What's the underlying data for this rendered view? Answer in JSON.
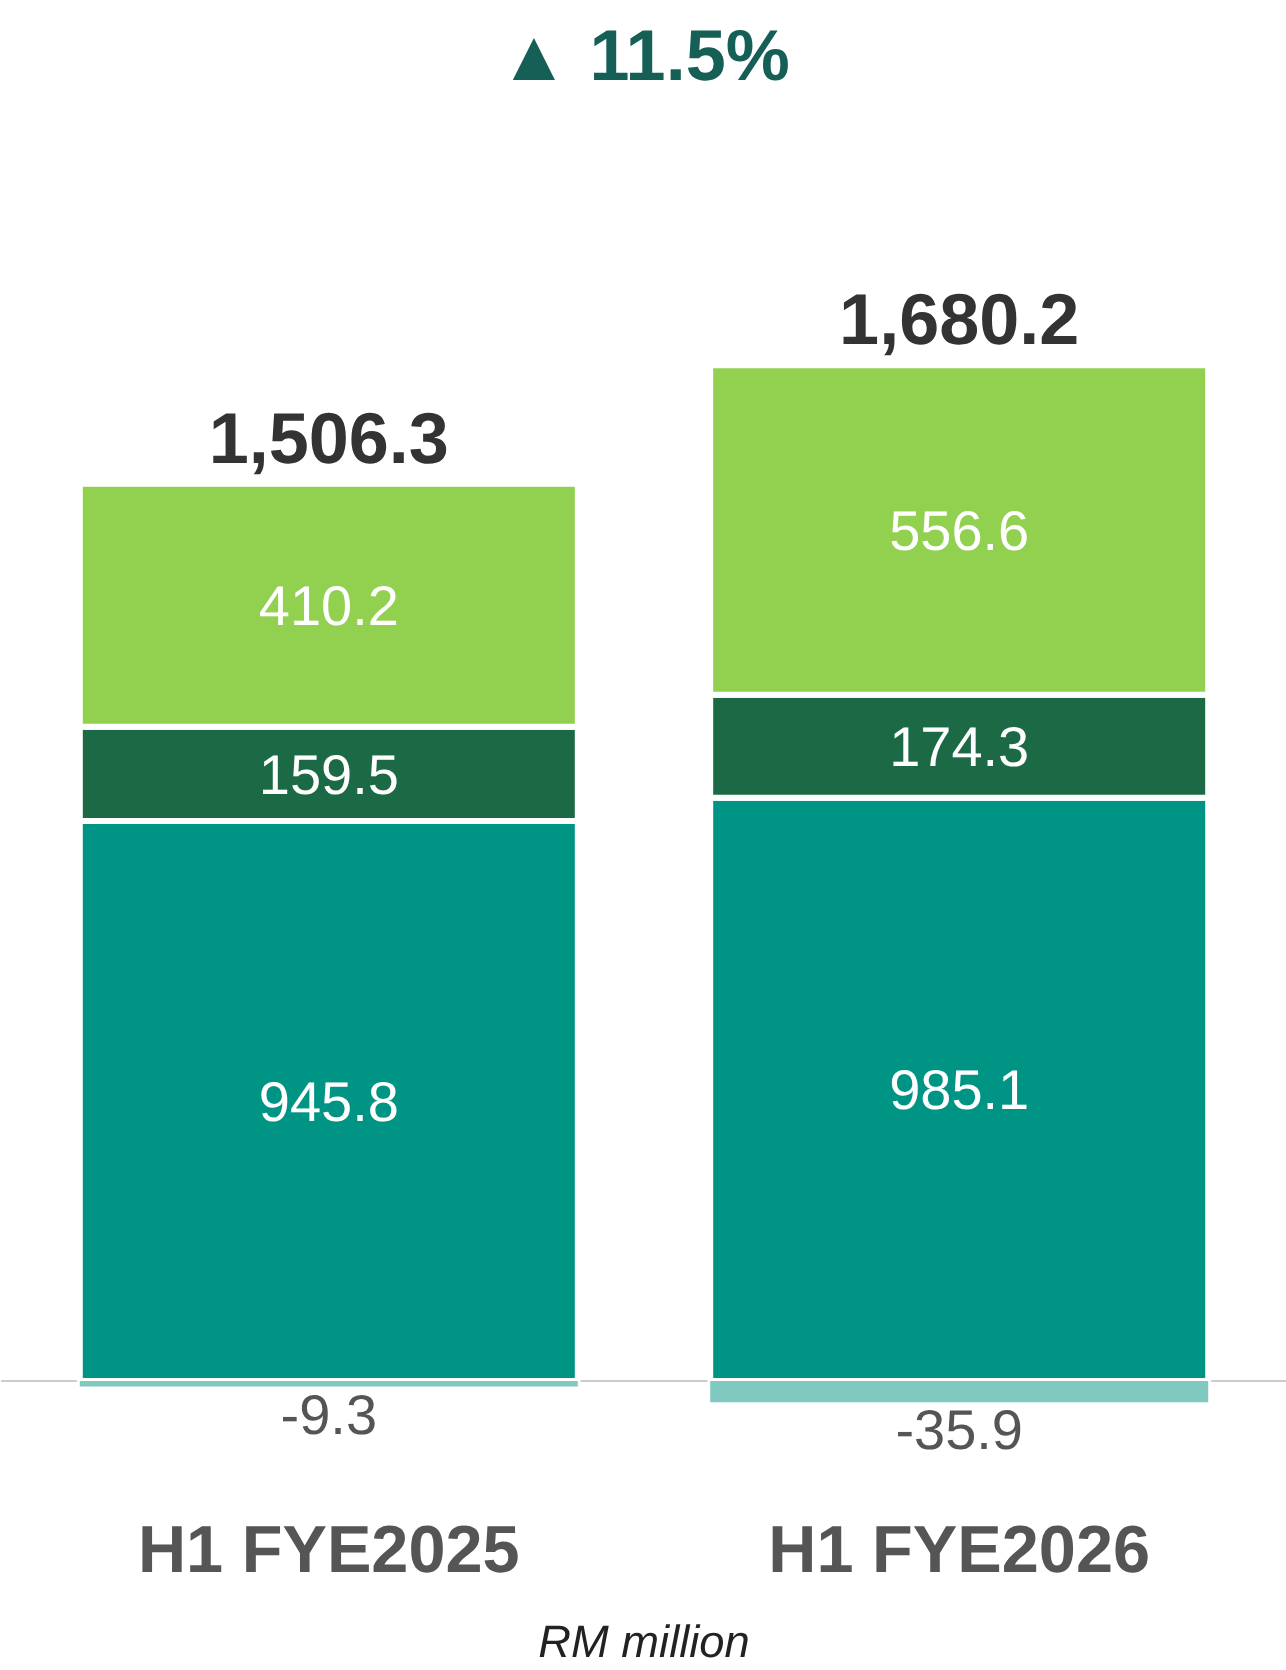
{
  "chart_data": {
    "type": "bar",
    "title": "▲ 11.5%",
    "xlabel": "RM million",
    "categories": [
      "H1 FYE2025",
      "H1 FYE2026"
    ],
    "stacked": true,
    "data_labels": true,
    "totals": [
      "1,506.3",
      "1,680.2"
    ],
    "series": [
      {
        "color": "#009485",
        "values": [
          945.8,
          985.1
        ]
      },
      {
        "color": "#1b6945",
        "values": [
          159.5,
          174.3
        ]
      },
      {
        "color": "#92d050",
        "values": [
          410.2,
          556.6
        ]
      },
      {
        "color": "#7fc9c1",
        "values": [
          -9.3,
          -35.9
        ]
      }
    ]
  }
}
